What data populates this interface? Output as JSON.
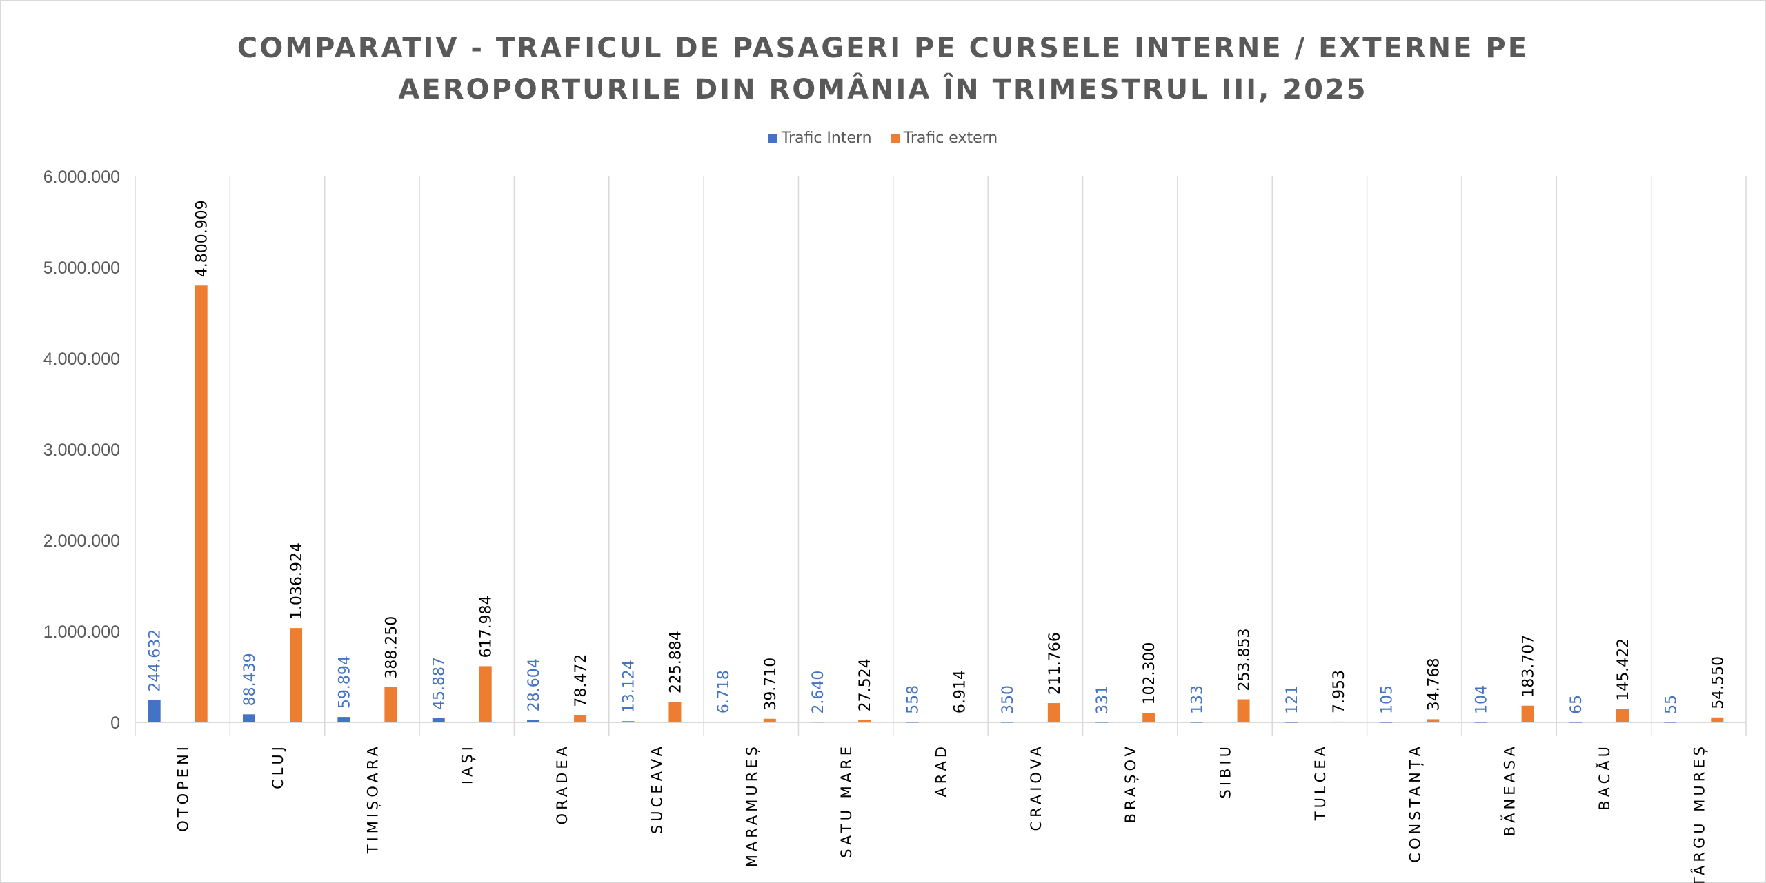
{
  "chart_data": {
    "type": "bar",
    "title_line1": "COMPARATIV - TRAFICUL DE PASAGERI PE CURSELE INTERNE / EXTERNE PE",
    "title_line2": "AEROPORTURILE DIN ROMÂNIA ÎN TRIMESTRUL III, 2025",
    "legend_position": "top",
    "ylim": [
      0,
      6000000
    ],
    "yticks": [
      0,
      1000000,
      2000000,
      3000000,
      4000000,
      5000000,
      6000000
    ],
    "ytick_labels": [
      "0",
      "1.000.000",
      "2.000.000",
      "3.000.000",
      "4.000.000",
      "5.000.000",
      "6.000.000"
    ],
    "categories": [
      "OTOPENI",
      "CLUJ",
      "TIMIȘOARA",
      "IAȘI",
      "ORADEA",
      "SUCEAVA",
      "MARAMUREȘ",
      "SATU MARE",
      "ARAD",
      "CRAIOVA",
      "BRAȘOV",
      "SIBIU",
      "TULCEA",
      "CONSTANȚA",
      "BĂNEASA",
      "BACĂU",
      "TÂRGU MUREȘ"
    ],
    "series": [
      {
        "name": "Trafic Intern",
        "color": "#4472c4",
        "values": [
          244632,
          88439,
          59894,
          45887,
          28604,
          13124,
          6718,
          2640,
          558,
          350,
          331,
          133,
          121,
          105,
          104,
          65,
          55
        ],
        "labels": [
          "244.632",
          "88.439",
          "59.894",
          "45.887",
          "28.604",
          "13.124",
          "6.718",
          "2.640",
          "558",
          "350",
          "331",
          "133",
          "121",
          "105",
          "104",
          "65",
          "55"
        ]
      },
      {
        "name": "Trafic extern",
        "color": "#ed7d31",
        "values": [
          4800909,
          1036924,
          388250,
          617984,
          78472,
          225884,
          39710,
          27524,
          6914,
          211766,
          102300,
          253853,
          7953,
          34768,
          183707,
          145422,
          54550
        ],
        "labels": [
          "4.800.909",
          "1.036.924",
          "388.250",
          "617.984",
          "78.472",
          "225.884",
          "39.710",
          "27.524",
          "6.914",
          "211.766",
          "102.300",
          "253.853",
          "7.953",
          "34.768",
          "183.707",
          "145.422",
          "54.550"
        ]
      }
    ]
  }
}
